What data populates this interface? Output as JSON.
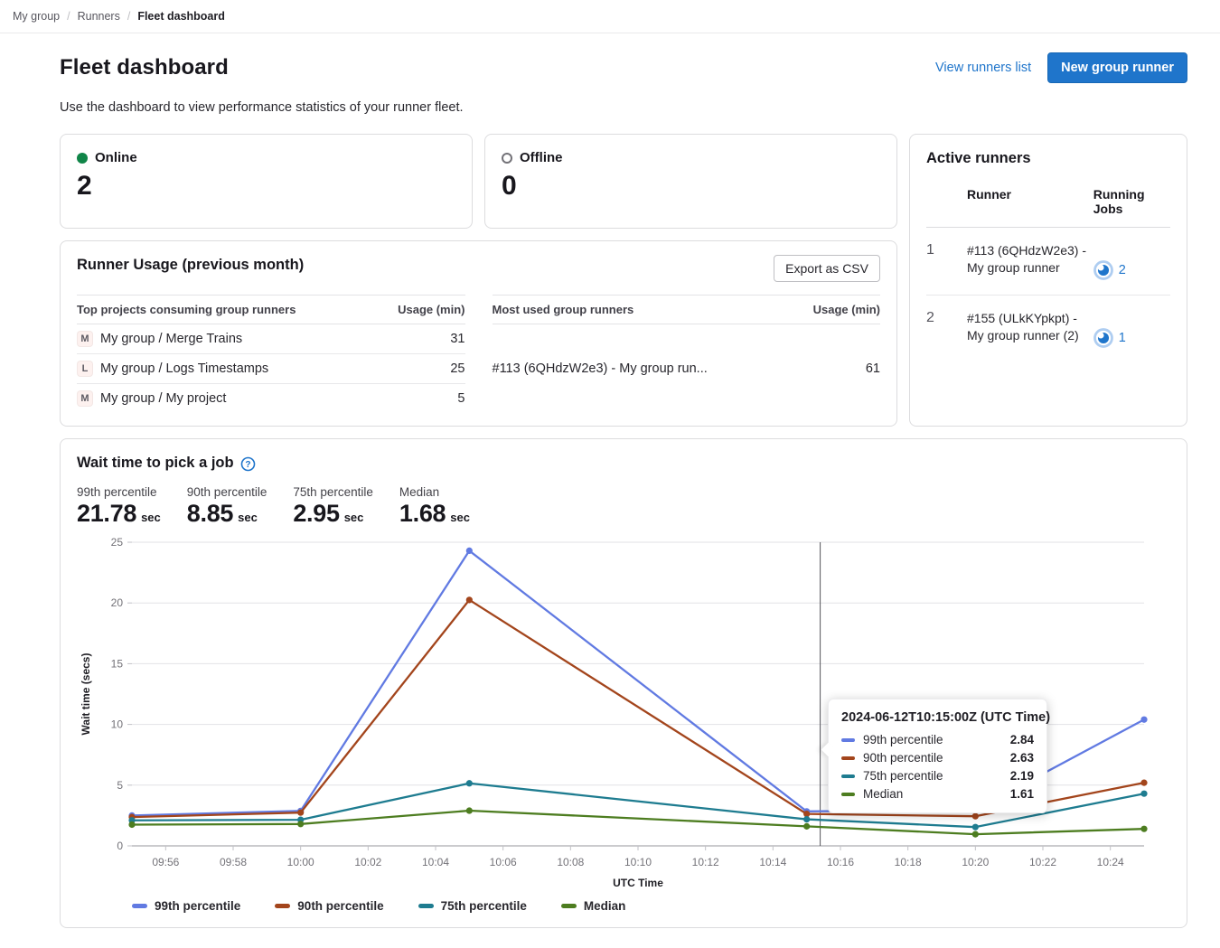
{
  "breadcrumb": {
    "items": [
      "My group",
      "Runners",
      "Fleet dashboard"
    ]
  },
  "header": {
    "title": "Fleet dashboard",
    "view_runners_link": "View runners list",
    "new_runner_button": "New group runner",
    "description": "Use the dashboard to view performance statistics of your runner fleet."
  },
  "status_cards": {
    "online": {
      "label": "Online",
      "value": "2"
    },
    "offline": {
      "label": "Offline",
      "value": "0"
    }
  },
  "runner_usage": {
    "title": "Runner Usage (previous month)",
    "export_button": "Export as CSV",
    "projects_table": {
      "col_name": "Top projects consuming group runners",
      "col_usage": "Usage (min)",
      "rows": [
        {
          "avatar": "M",
          "name": "My group / Merge Trains",
          "usage": "31"
        },
        {
          "avatar": "L",
          "name": "My group / Logs Timestamps",
          "usage": "25"
        },
        {
          "avatar": "M",
          "name": "My group / My project",
          "usage": "5"
        }
      ]
    },
    "runners_table": {
      "col_name": "Most used group runners",
      "col_usage": "Usage (min)",
      "rows": [
        {
          "name": "#113 (6QHdzW2e3) - My group run...",
          "usage": "61"
        }
      ]
    }
  },
  "active_runners": {
    "title": "Active runners",
    "col_runner": "Runner",
    "col_jobs": "Running Jobs",
    "rows": [
      {
        "index": "1",
        "name": "#113 (6QHdzW2e3) - My group runner",
        "jobs": "2"
      },
      {
        "index": "2",
        "name": "#155 (ULkKYpkpt) - My group runner (2)",
        "jobs": "1"
      }
    ]
  },
  "wait_time": {
    "title": "Wait time to pick a job",
    "stats": [
      {
        "label": "99th percentile",
        "value": "21.78",
        "unit": "sec"
      },
      {
        "label": "90th percentile",
        "value": "8.85",
        "unit": "sec"
      },
      {
        "label": "75th percentile",
        "value": "2.95",
        "unit": "sec"
      },
      {
        "label": "Median",
        "value": "1.68",
        "unit": "sec"
      }
    ]
  },
  "chart_data": {
    "type": "line",
    "title": "Wait time to pick a job",
    "xlabel": "UTC Time",
    "ylabel": "Wait time (secs)",
    "ylim": [
      0,
      25
    ],
    "yticks": [
      0,
      5,
      10,
      15,
      20,
      25
    ],
    "x_range_minutes": [
      0,
      30
    ],
    "x": [
      "09:55",
      "10:00",
      "10:05",
      "10:15",
      "10:20",
      "10:25"
    ],
    "x_minutes": [
      0,
      5,
      10,
      20,
      25,
      30
    ],
    "xticks": [
      "09:56",
      "09:58",
      "10:00",
      "10:02",
      "10:04",
      "10:06",
      "10:08",
      "10:10",
      "10:12",
      "10:14",
      "10:16",
      "10:18",
      "10:20",
      "10:22",
      "10:24"
    ],
    "xticks_minutes": [
      1,
      3,
      5,
      7,
      9,
      11,
      13,
      15,
      17,
      19,
      21,
      23,
      25,
      27,
      29
    ],
    "grid": true,
    "legend_position": "bottom",
    "series": [
      {
        "name": "99th percentile",
        "color": "#617ae2",
        "values": [
          2.5,
          2.88,
          24.3,
          2.84,
          2.96,
          10.4
        ]
      },
      {
        "name": "90th percentile",
        "color": "#a3451c",
        "values": [
          2.37,
          2.74,
          20.25,
          2.63,
          2.44,
          5.2
        ]
      },
      {
        "name": "75th percentile",
        "color": "#1e7c90",
        "values": [
          2.1,
          2.15,
          5.15,
          2.19,
          1.55,
          4.3
        ]
      },
      {
        "name": "Median",
        "color": "#4d7d20",
        "values": [
          1.75,
          1.8,
          2.9,
          1.61,
          0.96,
          1.4
        ]
      }
    ],
    "crosshair_minute": 20.4,
    "tooltip": {
      "title": "2024-06-12T10:15:00Z (UTC Time)",
      "rows": [
        {
          "label": "99th percentile",
          "value": "2.84",
          "color": "#617ae2"
        },
        {
          "label": "90th percentile",
          "value": "2.63",
          "color": "#a3451c"
        },
        {
          "label": "75th percentile",
          "value": "2.19",
          "color": "#1e7c90"
        },
        {
          "label": "Median",
          "value": "1.61",
          "color": "#4d7d20"
        }
      ]
    }
  },
  "colors": {
    "primary": "#1f75cb",
    "online_green": "#108548"
  }
}
